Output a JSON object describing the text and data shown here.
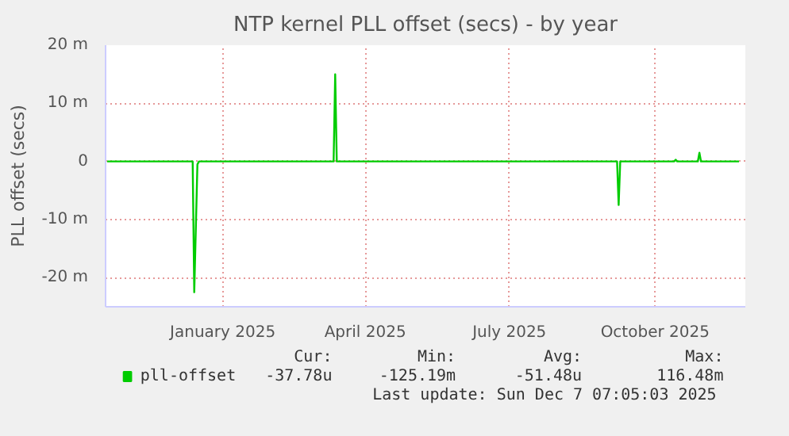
{
  "chart_data": {
    "type": "line",
    "title": "NTP kernel PLL offset (secs) - by year",
    "ylabel": "PLL offset (secs)",
    "xlim": [
      "2024-11-02",
      "2025-12-11"
    ],
    "ylim": [
      -25,
      20
    ],
    "xticks": [
      {
        "value": "2025-01-15",
        "label": "January 2025"
      },
      {
        "value": "2025-04-15",
        "label": "April 2025"
      },
      {
        "value": "2025-07-15",
        "label": "July 2025"
      },
      {
        "value": "2025-10-15",
        "label": "October 2025"
      }
    ],
    "yticks": [
      {
        "value": -20,
        "label": "-20 m"
      },
      {
        "value": -10,
        "label": "-10 m"
      },
      0,
      {
        "value": 10,
        "label": "10 m"
      },
      {
        "value": 20,
        "label": "20 m"
      }
    ],
    "grid": true,
    "legend": "bottom",
    "x": [
      "2024-11-03",
      "2024-12-27",
      "2024-12-28",
      "2024-12-30",
      "2024-12-31",
      "2025-03-26",
      "2025-03-27",
      "2025-03-28",
      "2025-09-21",
      "2025-09-22",
      "2025-09-23",
      "2025-10-27",
      "2025-10-28",
      "2025-10-29",
      "2025-11-11",
      "2025-11-12",
      "2025-11-13",
      "2025-12-07"
    ],
    "series": [
      {
        "name": "pll-offset",
        "color": "#00cc00",
        "values": [
          0,
          0,
          -22.5,
          -0.5,
          0,
          0,
          15,
          0,
          0,
          -7.5,
          0,
          0,
          0.3,
          0,
          0,
          1.5,
          0,
          0
        ]
      }
    ],
    "annotations": [
      "Cur:",
      "-37.78u",
      "Min:",
      "-125.19m",
      "Avg:",
      "-51.48u",
      "Max:",
      "116.48m",
      "Last update: Sun Dec  7 07:05:03 2025"
    ]
  }
}
